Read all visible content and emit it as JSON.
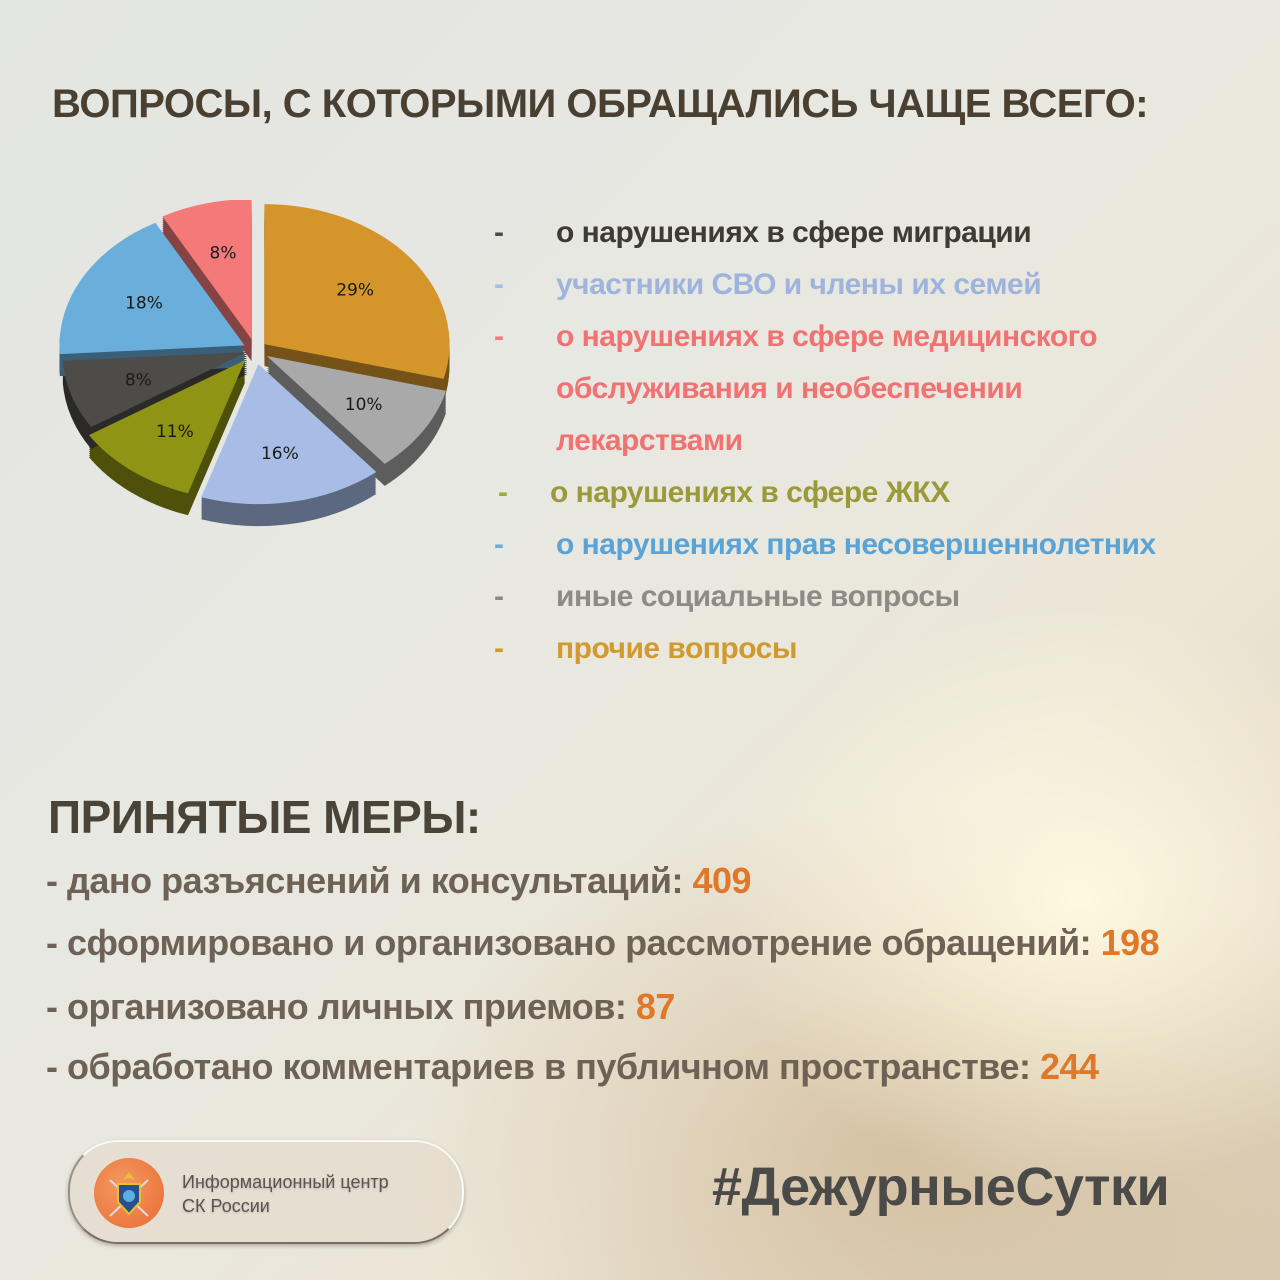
{
  "title": "ВОПРОСЫ, С КОТОРЫМИ ОБРАЩАЛИСЬ ЧАЩЕ ВСЕГО:",
  "chart_data": {
    "type": "pie",
    "style": "3d-exploded",
    "slices": [
      {
        "label": "прочие вопросы",
        "value": 29,
        "data_label": "29%",
        "color": "#d4952a"
      },
      {
        "label": "иные социальные вопросы",
        "value": 10,
        "data_label": "10%",
        "color": "#a9a9a9"
      },
      {
        "label": "участники СВО и члены их семей",
        "value": 16,
        "data_label": "16%",
        "color": "#a8bde6"
      },
      {
        "label": "о нарушениях в сфере ЖКХ",
        "value": 11,
        "data_label": "11%",
        "color": "#8f9414"
      },
      {
        "label": "о нарушениях в сфере миграции",
        "value": 8,
        "data_label": "8%",
        "color": "#4e4c48"
      },
      {
        "label": "о нарушениях прав несовершеннолетних",
        "value": 18,
        "data_label": "18%",
        "color": "#6aaedc"
      },
      {
        "label": "о нарушениях в сфере медицинского обслуживания и необеспечении лекарствами",
        "value": 8,
        "data_label": "8%",
        "color": "#f47a7a"
      }
    ],
    "legend_placement": "right"
  },
  "legend": [
    {
      "lines": [
        "о нарушениях в сфере миграции"
      ],
      "color": "#3e3a36",
      "dash_color": "#4e4c48"
    },
    {
      "lines": [
        "участники СВО и члены их семей"
      ],
      "color": "#9fb4dc",
      "dash_color": "#a8bde6"
    },
    {
      "lines": [
        "о нарушениях в сфере медицинского",
        "обслуживания и необеспечении",
        "лекарствами"
      ],
      "color": "#f07272",
      "dash_color": "#f47a7a"
    },
    {
      "lines": [
        "о нарушениях в сфере ЖКХ"
      ],
      "color": "#9a9a3a",
      "dash_color": "#a3a640"
    },
    {
      "lines": [
        "о нарушениях прав несовершеннолетних"
      ],
      "color": "#5aa3d6",
      "dash_color": "#6aaedc"
    },
    {
      "lines": [
        "иные социальные вопросы"
      ],
      "color": "#8e8a86",
      "dash_color": "#8e8a86"
    },
    {
      "lines": [
        "прочие вопросы"
      ],
      "color": "#d09a30",
      "dash_color": "#d4952a"
    }
  ],
  "dash": "-",
  "measures": {
    "title": "ПРИНЯТЫЕ МЕРЫ:",
    "items": [
      {
        "text": "- дано разъяснений и консультаций: ",
        "value": "409"
      },
      {
        "text": "- сформировано и организовано рассмотрение обращений: ",
        "value": "198"
      },
      {
        "text": "- организовано личных приемов: ",
        "value": "87"
      },
      {
        "text": "- обработано комментариев в публичном пространстве: ",
        "value": "244"
      }
    ]
  },
  "logo": {
    "line1": "Информационный центр",
    "line2": "СК России"
  },
  "hashtag": "#ДежурныеСутки"
}
